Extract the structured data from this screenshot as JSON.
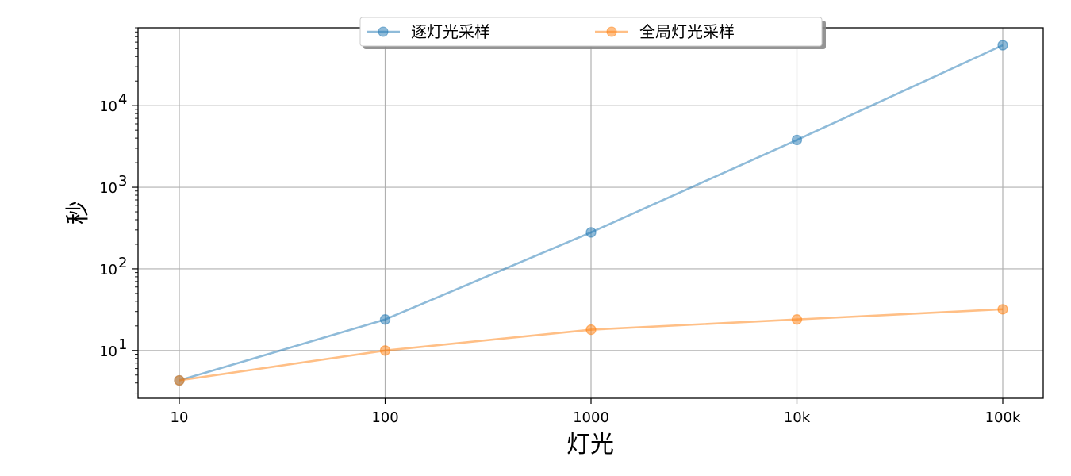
{
  "chart_data": {
    "type": "line",
    "x_categories": [
      "10",
      "100",
      "1000",
      "10k",
      "100k"
    ],
    "x_values": [
      10,
      100,
      1000,
      10000,
      100000
    ],
    "xlabel": "灯光",
    "ylabel": "秒",
    "yscale": "log",
    "ylim": [
      2.6,
      90000
    ],
    "y_ticks": [
      {
        "value": 10,
        "base": "10",
        "exp": "1"
      },
      {
        "value": 100,
        "base": "10",
        "exp": "2"
      },
      {
        "value": 1000,
        "base": "10",
        "exp": "3"
      },
      {
        "value": 10000,
        "base": "10",
        "exp": "4"
      }
    ],
    "grid": true,
    "legend_position": "upper-center",
    "series": [
      {
        "name": "逐灯光采样",
        "color": "#1f77b4",
        "values": [
          4.3,
          24,
          280,
          3800,
          55000
        ]
      },
      {
        "name": "全局灯光采样",
        "color": "#ff7f0e",
        "values": [
          4.3,
          10,
          18,
          24,
          32
        ]
      }
    ]
  }
}
